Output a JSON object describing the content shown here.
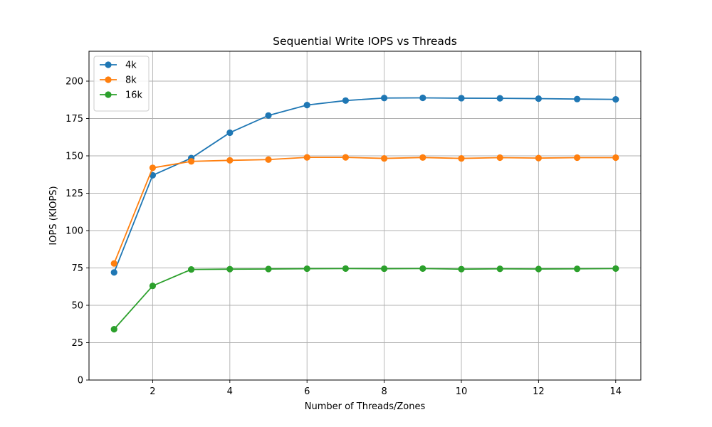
{
  "chart_data": {
    "type": "line",
    "title": "Sequential Write IOPS vs Threads",
    "xlabel": "Number of Threads/Zones",
    "ylabel": "IOPS (KIOPS)",
    "xlim": [
      0.35,
      14.65
    ],
    "ylim": [
      0,
      220
    ],
    "xticks": [
      2,
      4,
      6,
      8,
      10,
      12,
      14
    ],
    "yticks": [
      0,
      25,
      50,
      75,
      100,
      125,
      150,
      175,
      200
    ],
    "grid": true,
    "legend_position": "top-left",
    "x": [
      1,
      2,
      3,
      4,
      5,
      6,
      7,
      8,
      9,
      10,
      11,
      12,
      13,
      14
    ],
    "series": [
      {
        "name": "4k",
        "color": "#1f77b4",
        "values": [
          72.0,
          137.0,
          148.5,
          165.5,
          177.0,
          184.0,
          187.0,
          188.7,
          188.8,
          188.6,
          188.5,
          188.3,
          188.0,
          187.8
        ]
      },
      {
        "name": "8k",
        "color": "#ff7f0e",
        "values": [
          78.0,
          142.0,
          146.3,
          147.0,
          147.5,
          149.0,
          149.0,
          148.3,
          148.9,
          148.3,
          148.8,
          148.5,
          148.8,
          148.8
        ]
      },
      {
        "name": "16k",
        "color": "#2ca02c",
        "values": [
          34.0,
          63.0,
          74.0,
          74.2,
          74.3,
          74.5,
          74.6,
          74.5,
          74.6,
          74.2,
          74.4,
          74.3,
          74.4,
          74.6
        ]
      }
    ]
  }
}
